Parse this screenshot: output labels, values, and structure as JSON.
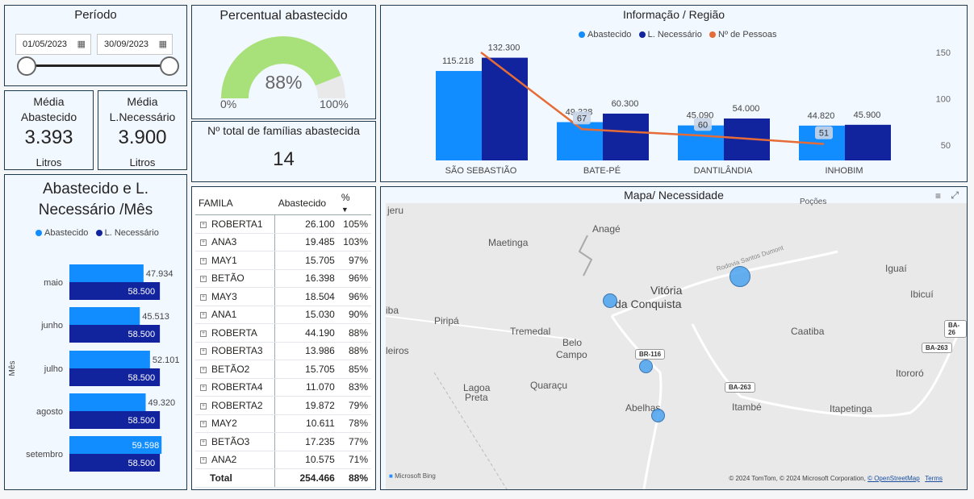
{
  "periodo": {
    "title": "Período",
    "start_date": "01/05/2023",
    "end_date": "30/09/2023"
  },
  "gauge": {
    "title": "Percentual abastecido",
    "value_label": "88%",
    "value": 88,
    "min_label": "0%",
    "max_label": "100%",
    "fill_color": "#a8e07a",
    "track_color": "#e9e9e9"
  },
  "media_abastecido": {
    "label_line1": "Média",
    "label_line2": "Abastecido",
    "value": "3.393",
    "unit": "Litros"
  },
  "media_necessario": {
    "label_line1": "Média",
    "label_line2": "L.Necessário",
    "value": "3.900",
    "unit": "Litros"
  },
  "familias": {
    "title": "Nº total de famílias abastecida",
    "value": "14"
  },
  "colors": {
    "abastecido": "#118dff",
    "necessario": "#12239e",
    "pessoas": "#e66c37"
  },
  "regiao": {
    "title": "Informação / Região",
    "legend": [
      "Abastecido",
      "L. Necessário",
      "Nº de Pessoas"
    ]
  },
  "mes": {
    "title_line1": "Abastecido e L.",
    "title_line2": "Necessário /Mês",
    "legend": [
      "Abastecido",
      "L. Necessário"
    ],
    "axis_label": "Mês"
  },
  "chart_data": [
    {
      "type": "bar",
      "title": "Informação / Região",
      "categories": [
        "SÃO SEBASTIÃO",
        "BATE-PÉ",
        "DANTILÂNDIA",
        "INHOBIM"
      ],
      "series": [
        {
          "name": "Abastecido",
          "values": [
            115.218,
            49.338,
            45.09,
            44.82
          ],
          "labels": [
            "115.218",
            "49.338",
            "45.090",
            "44.820"
          ]
        },
        {
          "name": "L. Necessário",
          "values": [
            132.3,
            60.3,
            54.0,
            45.9
          ],
          "labels": [
            "132.300",
            "60.300",
            "54.000",
            "45.900"
          ]
        },
        {
          "name": "Nº de Pessoas",
          "type": "line",
          "axis": "secondary",
          "values": [
            150,
            67,
            60,
            51
          ],
          "labels": [
            "",
            "67",
            "60",
            "51"
          ]
        }
      ],
      "ylim": [
        0,
        135
      ],
      "y2lim": [
        35,
        150
      ],
      "y2ticks": [
        "150",
        "100",
        "50"
      ],
      "legend_position": "top"
    },
    {
      "type": "bar",
      "orientation": "horizontal",
      "title": "Abastecido e L. Necessário /Mês",
      "ylabel": "Mês",
      "categories": [
        "maio",
        "junho",
        "julho",
        "agosto",
        "setembro"
      ],
      "series": [
        {
          "name": "Abastecido",
          "values": [
            47.934,
            45.513,
            52.101,
            49.32,
            59.598
          ],
          "labels": [
            "47.934",
            "45.513",
            "52.101",
            "49.320",
            "59.598"
          ]
        },
        {
          "name": "L. Necessário",
          "values": [
            58.5,
            58.5,
            58.5,
            58.5,
            58.5
          ],
          "labels": [
            "58.500",
            "58.500",
            "58.500",
            "58.500",
            "58.500"
          ]
        }
      ],
      "xlim": [
        0,
        60
      ],
      "legend_position": "top"
    }
  ],
  "table": {
    "headers": [
      "FAMILA",
      "Abastecido",
      "%"
    ],
    "rows": [
      {
        "name": "ROBERTA1",
        "abastecido": "26.100",
        "pct": "105%"
      },
      {
        "name": "ANA3",
        "abastecido": "19.485",
        "pct": "103%"
      },
      {
        "name": "MAY1",
        "abastecido": "15.705",
        "pct": "97%"
      },
      {
        "name": "BETÃO",
        "abastecido": "16.398",
        "pct": "96%"
      },
      {
        "name": "MAY3",
        "abastecido": "18.504",
        "pct": "96%"
      },
      {
        "name": "ANA1",
        "abastecido": "15.030",
        "pct": "90%"
      },
      {
        "name": "ROBERTA",
        "abastecido": "44.190",
        "pct": "88%"
      },
      {
        "name": "ROBERTA3",
        "abastecido": "13.986",
        "pct": "88%"
      },
      {
        "name": "BETÃO2",
        "abastecido": "15.705",
        "pct": "85%"
      },
      {
        "name": "ROBERTA4",
        "abastecido": "11.070",
        "pct": "83%"
      },
      {
        "name": "ROBERTA2",
        "abastecido": "19.872",
        "pct": "79%"
      },
      {
        "name": "MAY2",
        "abastecido": "10.611",
        "pct": "78%"
      },
      {
        "name": "BETÃO3",
        "abastecido": "17.235",
        "pct": "77%"
      },
      {
        "name": "ANA2",
        "abastecido": "10.575",
        "pct": "71%"
      }
    ],
    "total": {
      "label": "Total",
      "abastecido": "254.466",
      "pct": "88%"
    }
  },
  "mapa": {
    "title": "Mapa/ Necessidade",
    "places": [
      "jeru",
      "Anagé",
      "Maetinga",
      "Vitória",
      "da Conquista",
      "Iguaí",
      "Ibicuí",
      "iba",
      "Piripá",
      "Tremedal",
      "Belo",
      "Campo",
      "Caatiba",
      "leiros",
      "Itororó",
      "Lagoa",
      "Preta",
      "Quaraçu",
      "Abelhas",
      "Itambé",
      "Itapetinga",
      "Poções"
    ],
    "roads": [
      "Rodovia Santos Dumont",
      "BR-116",
      "BA-263",
      "BA-26",
      "BA-263"
    ],
    "bing_label": "Microsoft Bing",
    "copyright": "© 2024 TomTom, © 2024 Microsoft Corporation,",
    "osm_link": "© OpenStreetMap",
    "terms_link": "Terms"
  }
}
